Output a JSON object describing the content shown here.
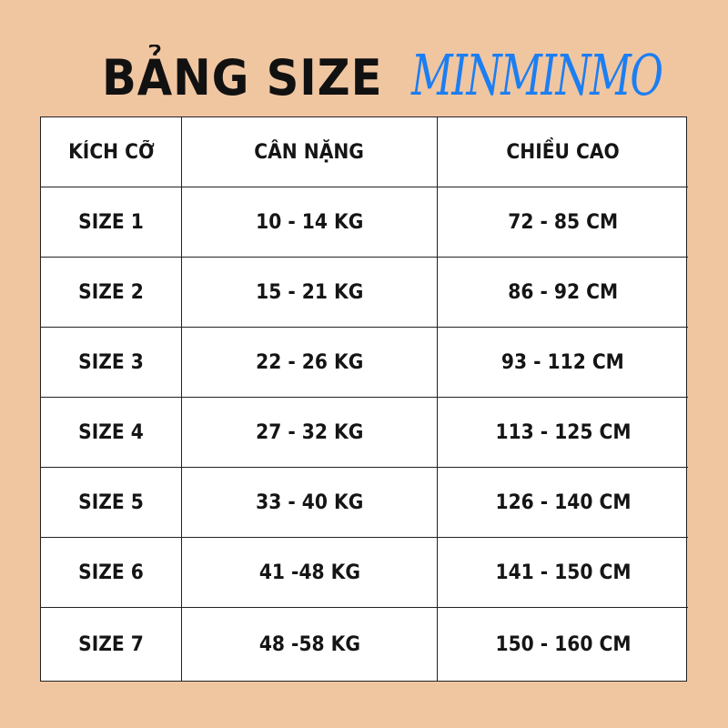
{
  "title": {
    "main": "BẢNG SIZE",
    "brand": "MINMINMO",
    "brand_color": "#1c7ef2"
  },
  "table": {
    "headers": [
      "KÍCH CỠ",
      "CÂN NẶNG",
      "CHIỀU CAO"
    ],
    "rows": [
      [
        "SIZE 1",
        "10 - 14 KG",
        "72 - 85 CM"
      ],
      [
        "SIZE 2",
        "15 - 21 KG",
        "86 - 92 CM"
      ],
      [
        "SIZE 3",
        "22 - 26 KG",
        "93 - 112 CM"
      ],
      [
        "SIZE 4",
        "27 - 32 KG",
        "113 - 125 CM"
      ],
      [
        "SIZE 5",
        "33 - 40 KG",
        "126 - 140 CM"
      ],
      [
        "SIZE 6",
        "41 -48 KG",
        "141 - 150 CM"
      ],
      [
        "SIZE 7",
        "48 -58 KG",
        "150 - 160 CM"
      ]
    ]
  },
  "colors": {
    "background": "#f0c6a1",
    "table_bg": "#ffffff",
    "text": "#151515"
  }
}
